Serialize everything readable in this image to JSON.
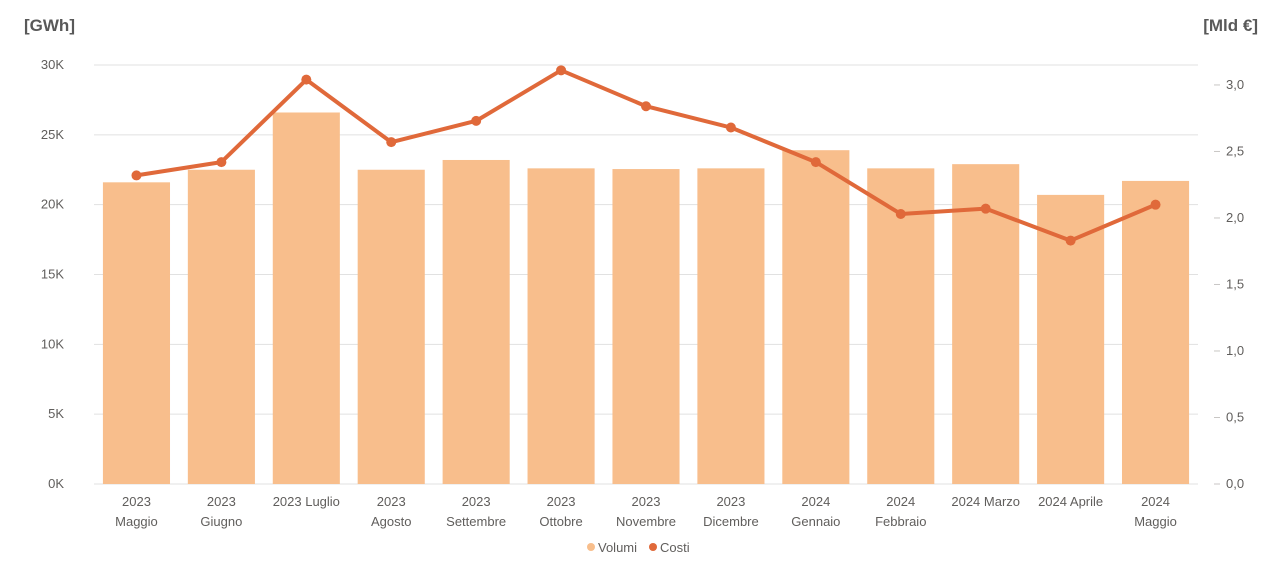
{
  "chart_data": {
    "type": "bar",
    "title": "",
    "left_axis_label": "[GWh]",
    "right_axis_label": "[Mld €]",
    "categories": [
      [
        "2023",
        "Maggio"
      ],
      [
        "2023",
        "Giugno"
      ],
      [
        "2023 Luglio"
      ],
      [
        "2023",
        "Agosto"
      ],
      [
        "2023",
        "Settembre"
      ],
      [
        "2023",
        "Ottobre"
      ],
      [
        "2023",
        "Novembre"
      ],
      [
        "2023",
        "Dicembre"
      ],
      [
        "2024",
        "Gennaio"
      ],
      [
        "2024",
        "Febbraio"
      ],
      [
        "2024 Marzo"
      ],
      [
        "2024 Aprile"
      ],
      [
        "2024",
        "Maggio"
      ]
    ],
    "series": [
      {
        "name": "Volumi",
        "type": "bar",
        "axis": "left",
        "color": "#f8be8c",
        "values": [
          21600,
          22500,
          26600,
          22500,
          23200,
          22600,
          22550,
          22600,
          23900,
          22600,
          22900,
          20700,
          21700
        ]
      },
      {
        "name": "Costi",
        "type": "line",
        "axis": "right",
        "color": "#e0693a",
        "values": [
          2.32,
          2.42,
          3.04,
          2.57,
          2.73,
          3.11,
          2.84,
          2.68,
          2.42,
          2.03,
          2.07,
          1.83,
          2.1
        ]
      }
    ],
    "y_left": {
      "ylim": [
        0,
        30000
      ],
      "ticks": [
        0,
        5000,
        10000,
        15000,
        20000,
        25000,
        30000
      ],
      "tick_labels": [
        "0K",
        "5K",
        "10K",
        "15K",
        "20K",
        "25K",
        "30K"
      ]
    },
    "y_right": {
      "ylim": [
        0,
        3.15
      ],
      "ticks": [
        0,
        0.5,
        1.0,
        1.5,
        2.0,
        2.5,
        3.0
      ],
      "tick_labels": [
        "0,0",
        "0,5",
        "1,0",
        "1,5",
        "2,0",
        "2,5",
        "3,0"
      ]
    },
    "grid": true,
    "legend_position": "bottom-center"
  }
}
